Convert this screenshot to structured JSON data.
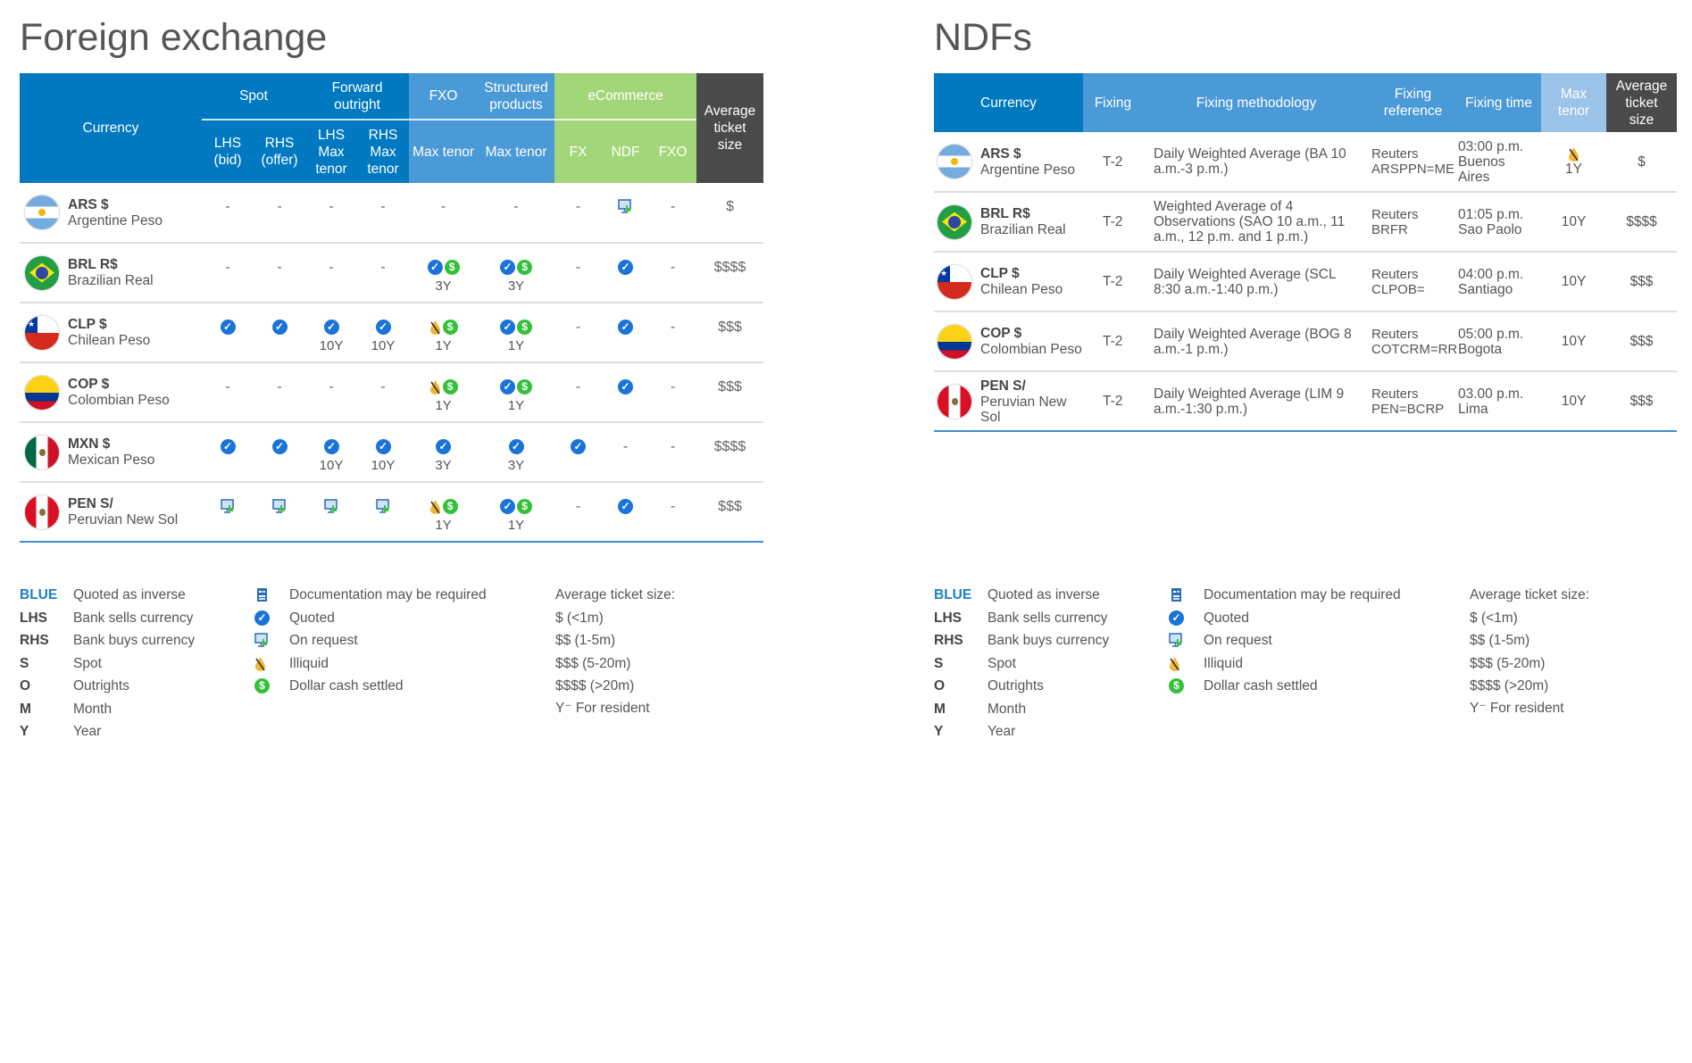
{
  "fx": {
    "title": "Foreign exchange",
    "headers": {
      "currency": "Currency",
      "spot": "Spot",
      "forward": "Forward outright",
      "fxo": "FXO",
      "structured": "Structured products",
      "ecommerce": "eCommerce",
      "avg": "Average ticket size",
      "sub": [
        "LHS (bid)",
        "RHS (offer)",
        "LHS Max tenor",
        "RHS Max tenor",
        "Max tenor",
        "Max tenor",
        "FX",
        "NDF",
        "FXO"
      ]
    },
    "rows": [
      {
        "code": "ARS $",
        "name": "Argentine Peso",
        "flag": "ar",
        "cells": [
          {
            "t": "-"
          },
          {
            "t": "-"
          },
          {
            "t": "-"
          },
          {
            "t": "-"
          },
          {
            "t": "-"
          },
          {
            "t": "-"
          },
          {
            "t": "-"
          },
          {
            "i": [
              "request"
            ]
          },
          {
            "t": "-"
          }
        ],
        "avg": "$"
      },
      {
        "code": "BRL R$",
        "name": "Brazilian Real",
        "flag": "br",
        "cells": [
          {
            "t": "-"
          },
          {
            "t": "-"
          },
          {
            "t": "-"
          },
          {
            "t": "-"
          },
          {
            "i": [
              "check",
              "dollar"
            ],
            "tenor": "3Y"
          },
          {
            "i": [
              "check",
              "dollar"
            ],
            "tenor": "3Y"
          },
          {
            "t": "-"
          },
          {
            "i": [
              "check"
            ]
          },
          {
            "t": "-"
          }
        ],
        "avg": "$$$$"
      },
      {
        "code": "CLP $",
        "name": "Chilean Peso",
        "flag": "cl",
        "cells": [
          {
            "i": [
              "check"
            ]
          },
          {
            "i": [
              "check"
            ]
          },
          {
            "i": [
              "check"
            ],
            "tenor": "10Y"
          },
          {
            "i": [
              "check"
            ],
            "tenor": "10Y"
          },
          {
            "i": [
              "illiquid",
              "dollar"
            ],
            "tenor": "1Y"
          },
          {
            "i": [
              "check",
              "dollar"
            ],
            "tenor": "1Y"
          },
          {
            "t": "-"
          },
          {
            "i": [
              "check"
            ]
          },
          {
            "t": "-"
          }
        ],
        "avg": "$$$"
      },
      {
        "code": "COP $",
        "name": "Colombian Peso",
        "flag": "co",
        "cells": [
          {
            "t": "-"
          },
          {
            "t": "-"
          },
          {
            "t": "-"
          },
          {
            "t": "-"
          },
          {
            "i": [
              "illiquid",
              "dollar"
            ],
            "tenor": "1Y"
          },
          {
            "i": [
              "check",
              "dollar"
            ],
            "tenor": "1Y"
          },
          {
            "t": "-"
          },
          {
            "i": [
              "check"
            ]
          },
          {
            "t": "-"
          }
        ],
        "avg": "$$$"
      },
      {
        "code": "MXN $",
        "name": "Mexican Peso",
        "flag": "mx",
        "cells": [
          {
            "i": [
              "check"
            ]
          },
          {
            "i": [
              "check"
            ]
          },
          {
            "i": [
              "check"
            ],
            "tenor": "10Y"
          },
          {
            "i": [
              "check"
            ],
            "tenor": "10Y"
          },
          {
            "i": [
              "check"
            ],
            "tenor": "3Y"
          },
          {
            "i": [
              "check"
            ],
            "tenor": "3Y"
          },
          {
            "i": [
              "check"
            ]
          },
          {
            "t": "-"
          },
          {
            "t": "-"
          }
        ],
        "avg": "$$$$"
      },
      {
        "code": "PEN S/",
        "name": "Peruvian New Sol",
        "flag": "pe",
        "cells": [
          {
            "i": [
              "request"
            ]
          },
          {
            "i": [
              "request"
            ]
          },
          {
            "i": [
              "request"
            ]
          },
          {
            "i": [
              "request"
            ]
          },
          {
            "i": [
              "illiquid",
              "dollar"
            ],
            "tenor": "1Y"
          },
          {
            "i": [
              "check",
              "dollar"
            ],
            "tenor": "1Y"
          },
          {
            "t": "-"
          },
          {
            "i": [
              "check"
            ]
          },
          {
            "t": "-"
          }
        ],
        "avg": "$$$"
      }
    ]
  },
  "ndf": {
    "title": "NDFs",
    "headers": [
      "Currency",
      "Fixing",
      "Fixing methodology",
      "Fixing reference",
      "Fixing time",
      "Max tenor",
      "Average ticket size"
    ],
    "rows": [
      {
        "code": "ARS $",
        "name": "Argentine Peso",
        "flag": "ar",
        "fixing": "T-2",
        "method": "Daily Weighted Average (BA 10 a.m.-3 p.m.)",
        "ref": "Reuters ARSPPN=ME",
        "time": "03:00 p.m. Buenos Aires",
        "tenor": "1Y",
        "tenor_icon": "illiquid",
        "avg": "$"
      },
      {
        "code": "BRL R$",
        "name": "Brazilian Real",
        "flag": "br",
        "fixing": "T-2",
        "method": "Weighted Average of 4 Observations (SAO 10 a.m., 11 a.m., 12 p.m. and 1 p.m.)",
        "ref": "Reuters BRFR",
        "time": "01:05 p.m. Sao Paolo",
        "tenor": "10Y",
        "avg": "$$$$"
      },
      {
        "code": "CLP $",
        "name": "Chilean Peso",
        "flag": "cl",
        "fixing": "T-2",
        "method": "Daily Weighted Average (SCL 8:30 a.m.-1:40 p.m.)",
        "ref": "Reuters CLPOB=",
        "time": "04:00 p.m. Santiago",
        "tenor": "10Y",
        "avg": "$$$"
      },
      {
        "code": "COP $",
        "name": "Colombian Peso",
        "flag": "co",
        "fixing": "T-2",
        "method": "Daily Weighted Average (BOG 8 a.m.-1 p.m.)",
        "ref": "Reuters COTCRM=RR",
        "time": "05:00 p.m. Bogota",
        "tenor": "10Y",
        "avg": "$$$"
      },
      {
        "code": "PEN S/",
        "name": "Peruvian New Sol",
        "flag": "pe",
        "fixing": "T-2",
        "method": "Daily Weighted Average (LIM 9 a.m.-1:30 p.m.)",
        "ref": "Reuters PEN=BCRP",
        "time": "03.00 p.m. Lima",
        "tenor": "10Y",
        "avg": "$$$"
      }
    ]
  },
  "legend": {
    "abbr": [
      {
        "k": "BLUE",
        "v": "Quoted as inverse"
      },
      {
        "k": "LHS",
        "v": "Bank sells currency"
      },
      {
        "k": "RHS",
        "v": "Bank buys currency"
      },
      {
        "k": "S",
        "v": "Spot"
      },
      {
        "k": "O",
        "v": "Outrights"
      },
      {
        "k": "M",
        "v": "Month"
      },
      {
        "k": "Y",
        "v": "Year"
      }
    ],
    "icons": [
      {
        "icon": "doc",
        "v": "Documentation may be required"
      },
      {
        "icon": "check",
        "v": "Quoted"
      },
      {
        "icon": "request",
        "v": "On request"
      },
      {
        "icon": "illiquid",
        "v": "Illiquid"
      },
      {
        "icon": "dollar",
        "v": "Dollar cash settled"
      }
    ],
    "ticket": [
      "Average ticket size:",
      "$ (<1m)",
      "$$ (1-5m)",
      "$$$ (5-20m)",
      "$$$$ (>20m)",
      "Y⁻ For resident"
    ]
  },
  "colors": {
    "blue": "#0079c1",
    "mid_blue": "#4b9ad8",
    "green": "#a3d67a",
    "gray": "#4a4a4a",
    "check": "#1a73d9",
    "dollar": "#34c03a"
  }
}
